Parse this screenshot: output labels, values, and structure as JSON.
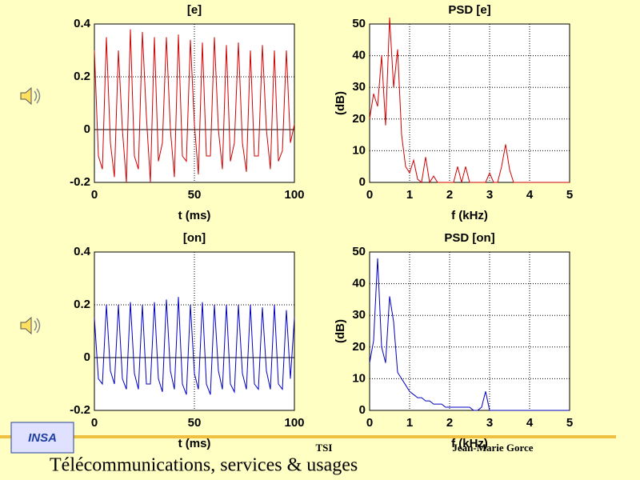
{
  "chart_data": [
    {
      "type": "line",
      "title": "[e]",
      "xlabel": "t (ms)",
      "color": "#d00000",
      "xlim": [
        0,
        100
      ],
      "xticks": [
        0,
        50,
        100
      ],
      "ylim": [
        -0.2,
        0.4
      ],
      "yticks": [
        -0.2,
        0,
        0.2,
        0.4
      ],
      "grid": true,
      "x": [
        0,
        2,
        4,
        6,
        8,
        10,
        12,
        14,
        16,
        18,
        20,
        22,
        24,
        26,
        28,
        30,
        32,
        34,
        36,
        38,
        40,
        42,
        44,
        46,
        48,
        50,
        52,
        54,
        56,
        58,
        60,
        62,
        64,
        66,
        68,
        70,
        72,
        74,
        76,
        78,
        80,
        82,
        84,
        86,
        88,
        90,
        92,
        94,
        96,
        98,
        100
      ],
      "values": [
        0.3,
        -0.1,
        -0.15,
        0.35,
        -0.05,
        -0.18,
        0.3,
        0.0,
        -0.2,
        0.38,
        -0.1,
        -0.15,
        0.37,
        0.05,
        -0.2,
        0.35,
        -0.12,
        -0.05,
        0.35,
        0.0,
        -0.18,
        0.36,
        -0.1,
        -0.12,
        0.34,
        0.02,
        -0.17,
        0.33,
        -0.1,
        -0.1,
        0.35,
        0.0,
        -0.15,
        0.32,
        -0.12,
        -0.05,
        0.33,
        -0.05,
        -0.16,
        0.3,
        -0.1,
        -0.1,
        0.32,
        0.0,
        -0.15,
        0.3,
        -0.12,
        -0.08,
        0.3,
        -0.05,
        0.02
      ]
    },
    {
      "type": "line",
      "title": "PSD [e]",
      "xlabel": "f (kHz)",
      "ylabel": "(dB)",
      "color": "#d00000",
      "xlim": [
        0,
        5
      ],
      "xticks": [
        0,
        1,
        2,
        3,
        4,
        5
      ],
      "ylim": [
        0,
        50
      ],
      "yticks": [
        0,
        10,
        20,
        30,
        40,
        50
      ],
      "grid": true,
      "x": [
        0,
        0.1,
        0.2,
        0.3,
        0.4,
        0.5,
        0.6,
        0.7,
        0.8,
        0.9,
        1,
        1.1,
        1.2,
        1.3,
        1.4,
        1.5,
        1.6,
        1.7,
        1.8,
        1.9,
        2,
        2.1,
        2.2,
        2.3,
        2.4,
        2.5,
        2.6,
        2.7,
        2.8,
        2.9,
        3,
        3.1,
        3.2,
        3.3,
        3.4,
        3.5,
        3.6,
        3.7,
        3.8,
        3.9,
        4,
        4.1,
        4.2,
        4.3,
        4.4,
        4.5,
        4.6,
        4.7,
        4.8,
        4.9,
        5
      ],
      "values": [
        20,
        28,
        24,
        40,
        18,
        52,
        30,
        42,
        15,
        5,
        3,
        7,
        1,
        0,
        8,
        0,
        2,
        0,
        0,
        0,
        0,
        0,
        5,
        0,
        5,
        0,
        0,
        0,
        0,
        0,
        3,
        0,
        0,
        5,
        12,
        4,
        0,
        0,
        0,
        0,
        0,
        0,
        0,
        0,
        0,
        0,
        0,
        0,
        0,
        0,
        0
      ]
    },
    {
      "type": "line",
      "title": "[on]",
      "xlabel": "t (ms)",
      "color": "#0000c0",
      "xlim": [
        0,
        100
      ],
      "xticks": [
        0,
        50,
        100
      ],
      "ylim": [
        -0.2,
        0.4
      ],
      "yticks": [
        -0.2,
        0,
        0.2,
        0.4
      ],
      "grid": true,
      "x": [
        0,
        2,
        4,
        6,
        8,
        10,
        12,
        14,
        16,
        18,
        20,
        22,
        24,
        26,
        28,
        30,
        32,
        34,
        36,
        38,
        40,
        42,
        44,
        46,
        48,
        50,
        52,
        54,
        56,
        58,
        60,
        62,
        64,
        66,
        68,
        70,
        72,
        74,
        76,
        78,
        80,
        82,
        84,
        86,
        88,
        90,
        92,
        94,
        96,
        98,
        100
      ],
      "values": [
        0.15,
        -0.08,
        -0.1,
        0.2,
        -0.05,
        -0.1,
        0.2,
        -0.08,
        -0.12,
        0.21,
        -0.06,
        -0.12,
        0.2,
        -0.1,
        -0.1,
        0.21,
        -0.08,
        -0.13,
        0.22,
        -0.05,
        -0.12,
        0.23,
        -0.1,
        -0.14,
        0.2,
        -0.06,
        -0.12,
        0.21,
        -0.1,
        -0.14,
        0.2,
        -0.05,
        -0.12,
        0.2,
        -0.1,
        -0.13,
        0.2,
        -0.06,
        -0.12,
        0.2,
        -0.1,
        -0.12,
        0.19,
        -0.05,
        -0.12,
        0.2,
        -0.1,
        -0.12,
        0.18,
        -0.08,
        0.15
      ]
    },
    {
      "type": "line",
      "title": "PSD [on]",
      "xlabel": "f (kHz)",
      "ylabel": "(dB)",
      "color": "#0000c0",
      "xlim": [
        0,
        5
      ],
      "xticks": [
        0,
        1,
        2,
        3,
        4,
        5
      ],
      "ylim": [
        0,
        50
      ],
      "yticks": [
        0,
        10,
        20,
        30,
        40,
        50
      ],
      "grid": true,
      "x": [
        0,
        0.1,
        0.2,
        0.3,
        0.4,
        0.5,
        0.6,
        0.7,
        0.8,
        0.9,
        1,
        1.1,
        1.2,
        1.3,
        1.4,
        1.5,
        1.6,
        1.7,
        1.8,
        1.9,
        2,
        2.1,
        2.2,
        2.3,
        2.4,
        2.5,
        2.6,
        2.7,
        2.8,
        2.9,
        3,
        3.1,
        3.2,
        3.3,
        3.4,
        3.5,
        3.6,
        3.7,
        3.8,
        3.9,
        4,
        4.1,
        4.2,
        4.3,
        4.4,
        4.5,
        4.6,
        4.7,
        4.8,
        4.9,
        5
      ],
      "values": [
        15,
        22,
        48,
        20,
        15,
        36,
        28,
        12,
        10,
        8,
        6,
        5,
        4,
        4,
        3,
        3,
        2,
        2,
        2,
        1,
        1,
        1,
        1,
        1,
        1,
        1,
        0,
        0,
        1,
        6,
        0,
        0,
        0,
        0,
        0,
        0,
        0,
        0,
        0,
        0,
        0,
        0,
        0,
        0,
        0,
        0,
        0,
        0,
        0,
        0,
        0
      ]
    }
  ],
  "footer": {
    "logo": "INSA",
    "course": "TSI",
    "author": "Jean-Marie Gorce",
    "subtitle": "Télécommunications, services & usages"
  }
}
